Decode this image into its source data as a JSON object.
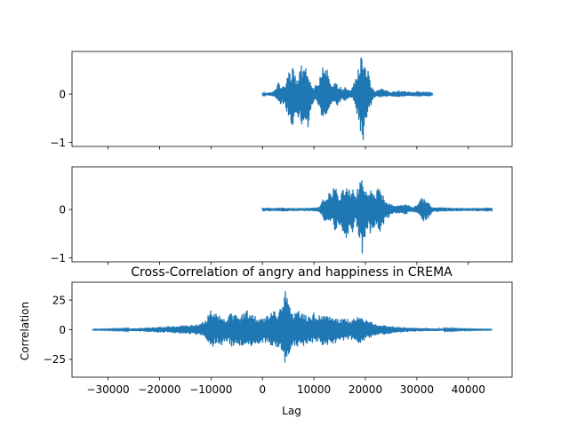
{
  "chart_data": [
    {
      "type": "line",
      "title": "",
      "xlabel": "",
      "ylabel": "",
      "xlim": [
        -37000,
        48500
      ],
      "ylim": [
        -1.08,
        0.88
      ],
      "xticks": [
        -30000,
        -20000,
        -10000,
        0,
        10000,
        20000,
        30000,
        40000
      ],
      "xtick_labels_shown": false,
      "yticks": [
        -1,
        0
      ],
      "ytick_labels": [
        "−1",
        "0"
      ],
      "color": "#1f77b4",
      "grid": false,
      "series": [
        {
          "x_start": 0,
          "x_end": 33000,
          "envelope": [
            [
              0,
              0.02,
              -0.02
            ],
            [
              1000,
              0.03,
              -0.03
            ],
            [
              2000,
              0.05,
              -0.05
            ],
            [
              2500,
              0.1,
              -0.08
            ],
            [
              3000,
              0.3,
              -0.18
            ],
            [
              3500,
              0.2,
              -0.22
            ],
            [
              4000,
              0.15,
              -0.2
            ],
            [
              4500,
              0.22,
              -0.3
            ],
            [
              5000,
              0.6,
              -0.55
            ],
            [
              5500,
              0.45,
              -0.75
            ],
            [
              6000,
              0.7,
              -0.6
            ],
            [
              6500,
              0.35,
              -0.45
            ],
            [
              7000,
              0.3,
              -0.5
            ],
            [
              7500,
              0.65,
              -0.7
            ],
            [
              8000,
              0.55,
              -0.85
            ],
            [
              8500,
              0.6,
              -0.95
            ],
            [
              9000,
              0.4,
              -0.5
            ],
            [
              9500,
              0.2,
              -0.3
            ],
            [
              10000,
              0.1,
              -0.15
            ],
            [
              10500,
              0.25,
              -0.15
            ],
            [
              11000,
              0.3,
              -0.3
            ],
            [
              11500,
              0.62,
              -0.5
            ],
            [
              12000,
              0.45,
              -0.55
            ],
            [
              12500,
              0.58,
              -0.6
            ],
            [
              13000,
              0.3,
              -0.3
            ],
            [
              13500,
              0.15,
              -0.2
            ],
            [
              14000,
              0.25,
              -0.15
            ],
            [
              14500,
              0.2,
              -0.25
            ],
            [
              15000,
              0.18,
              -0.2
            ],
            [
              15500,
              0.1,
              -0.12
            ],
            [
              16000,
              0.15,
              -0.15
            ],
            [
              16500,
              0.1,
              -0.1
            ],
            [
              17000,
              0.08,
              -0.08
            ],
            [
              17500,
              0.15,
              -0.1
            ],
            [
              18000,
              0.35,
              -0.3
            ],
            [
              18500,
              0.45,
              -0.55
            ],
            [
              19000,
              0.75,
              -0.85
            ],
            [
              19500,
              0.82,
              -1.0
            ],
            [
              20000,
              0.7,
              -0.75
            ],
            [
              20500,
              0.5,
              -0.45
            ],
            [
              21000,
              0.22,
              -0.25
            ],
            [
              21500,
              0.1,
              -0.08
            ],
            [
              22000,
              0.06,
              -0.06
            ],
            [
              23000,
              0.12,
              -0.08
            ],
            [
              24000,
              0.08,
              -0.06
            ],
            [
              25000,
              0.05,
              -0.05
            ],
            [
              26000,
              0.07,
              -0.06
            ],
            [
              27000,
              0.08,
              -0.06
            ],
            [
              28000,
              0.06,
              -0.05
            ],
            [
              29000,
              0.05,
              -0.05
            ],
            [
              30000,
              0.06,
              -0.05
            ],
            [
              31000,
              0.05,
              -0.05
            ],
            [
              32000,
              0.06,
              -0.05
            ],
            [
              33000,
              0.03,
              -0.03
            ]
          ]
        }
      ]
    },
    {
      "type": "line",
      "title": "",
      "xlabel": "",
      "ylabel": "",
      "xlim": [
        -37000,
        48500
      ],
      "ylim": [
        -1.08,
        0.88
      ],
      "xticks": [
        -30000,
        -20000,
        -10000,
        0,
        10000,
        20000,
        30000,
        40000
      ],
      "xtick_labels_shown": false,
      "yticks": [
        -1,
        0
      ],
      "ytick_labels": [
        "−1",
        "0"
      ],
      "color": "#1f77b4",
      "grid": false,
      "series": [
        {
          "x_start": 0,
          "x_end": 44500,
          "envelope": [
            [
              0,
              0.04,
              -0.04
            ],
            [
              2000,
              0.03,
              -0.03
            ],
            [
              4000,
              0.04,
              -0.04
            ],
            [
              6000,
              0.03,
              -0.03
            ],
            [
              8000,
              0.03,
              -0.03
            ],
            [
              10000,
              0.04,
              -0.04
            ],
            [
              11000,
              0.05,
              -0.05
            ],
            [
              11500,
              0.15,
              -0.15
            ],
            [
              12000,
              0.3,
              -0.32
            ],
            [
              12500,
              0.28,
              -0.25
            ],
            [
              13000,
              0.4,
              -0.3
            ],
            [
              13500,
              0.3,
              -0.25
            ],
            [
              14000,
              0.55,
              -0.45
            ],
            [
              14500,
              0.38,
              -0.35
            ],
            [
              15000,
              0.3,
              -0.4
            ],
            [
              15500,
              0.45,
              -0.5
            ],
            [
              16000,
              0.35,
              -0.55
            ],
            [
              16500,
              0.62,
              -0.68
            ],
            [
              17000,
              0.35,
              -0.38
            ],
            [
              17500,
              0.5,
              -0.5
            ],
            [
              18000,
              0.3,
              -0.25
            ],
            [
              18500,
              0.45,
              -0.62
            ],
            [
              19000,
              0.72,
              -0.78
            ],
            [
              19500,
              0.65,
              -1.0
            ],
            [
              20000,
              0.4,
              -0.45
            ],
            [
              20500,
              0.3,
              -0.38
            ],
            [
              21000,
              0.42,
              -0.55
            ],
            [
              21500,
              0.35,
              -0.42
            ],
            [
              22000,
              0.3,
              -0.35
            ],
            [
              22500,
              0.5,
              -0.55
            ],
            [
              23000,
              0.38,
              -0.42
            ],
            [
              23500,
              0.28,
              -0.3
            ],
            [
              24000,
              0.15,
              -0.2
            ],
            [
              25000,
              0.12,
              -0.12
            ],
            [
              26000,
              0.08,
              -0.08
            ],
            [
              27000,
              0.1,
              -0.1
            ],
            [
              28000,
              0.12,
              -0.1
            ],
            [
              29000,
              0.05,
              -0.05
            ],
            [
              30000,
              0.1,
              -0.08
            ],
            [
              31000,
              0.25,
              -0.3
            ],
            [
              32000,
              0.18,
              -0.2
            ],
            [
              32500,
              0.12,
              -0.12
            ],
            [
              33000,
              0.05,
              -0.05
            ],
            [
              36000,
              0.04,
              -0.04
            ],
            [
              40000,
              0.03,
              -0.03
            ],
            [
              44500,
              0.04,
              -0.04
            ]
          ]
        }
      ]
    },
    {
      "type": "line",
      "title": "Cross-Correlation of angry and happiness in CREMA",
      "xlabel": "Lag",
      "ylabel": "Correlation",
      "xlim": [
        -37000,
        48500
      ],
      "ylim": [
        -40,
        40
      ],
      "xticks": [
        -30000,
        -20000,
        -10000,
        0,
        10000,
        20000,
        30000,
        40000
      ],
      "xtick_labels": [
        "−30000",
        "−20000",
        "−10000",
        "0",
        "10000",
        "20000",
        "30000",
        "40000"
      ],
      "xtick_labels_shown": true,
      "yticks": [
        -25,
        0,
        25
      ],
      "ytick_labels": [
        "−25",
        "0",
        "25"
      ],
      "color": "#1f77b4",
      "grid": false,
      "series": [
        {
          "x_start": -33000,
          "x_end": 44500,
          "envelope": [
            [
              -33000,
              0.3,
              -0.3
            ],
            [
              -30000,
              0.4,
              -0.4
            ],
            [
              -28000,
              0.6,
              -0.6
            ],
            [
              -26000,
              1.0,
              -1.0
            ],
            [
              -24000,
              1.5,
              -1.5
            ],
            [
              -22000,
              2.0,
              -2.0
            ],
            [
              -20000,
              2.5,
              -2.5
            ],
            [
              -18000,
              3.0,
              -2.8
            ],
            [
              -16000,
              3.5,
              -3.5
            ],
            [
              -14000,
              4.0,
              -4.0
            ],
            [
              -12000,
              5.0,
              -5.0
            ],
            [
              -11000,
              10.0,
              -8.0
            ],
            [
              -10000,
              19.0,
              -16.0
            ],
            [
              -9000,
              15.0,
              -12.0
            ],
            [
              -8000,
              12.0,
              -13.0
            ],
            [
              -7000,
              10.0,
              -10.0
            ],
            [
              -6000,
              16.0,
              -15.0
            ],
            [
              -5000,
              12.0,
              -13.0
            ],
            [
              -4000,
              14.0,
              -14.0
            ],
            [
              -3000,
              17.0,
              -16.0
            ],
            [
              -2000,
              13.0,
              -14.0
            ],
            [
              -1000,
              11.0,
              -12.0
            ],
            [
              0,
              10.0,
              -11.0
            ],
            [
              1000,
              14.0,
              -12.0
            ],
            [
              2000,
              17.0,
              -18.0
            ],
            [
              3000,
              15.0,
              -16.0
            ],
            [
              4000,
              22.0,
              -20.0
            ],
            [
              4500,
              36.0,
              -34.0
            ],
            [
              5000,
              22.0,
              -22.0
            ],
            [
              6000,
              15.0,
              -16.0
            ],
            [
              7000,
              17.0,
              -15.0
            ],
            [
              8000,
              14.0,
              -14.0
            ],
            [
              9000,
              11.0,
              -10.0
            ],
            [
              10000,
              15.0,
              -12.0
            ],
            [
              11000,
              12.0,
              -11.0
            ],
            [
              12000,
              16.0,
              -15.0
            ],
            [
              13000,
              11.0,
              -12.0
            ],
            [
              14000,
              12.0,
              -13.0
            ],
            [
              15000,
              9.0,
              -10.0
            ],
            [
              16000,
              11.0,
              -9.0
            ],
            [
              17000,
              8.0,
              -9.0
            ],
            [
              18000,
              10.0,
              -10.0
            ],
            [
              19000,
              14.0,
              -12.0
            ],
            [
              20000,
              9.0,
              -8.0
            ],
            [
              22000,
              5.0,
              -5.0
            ],
            [
              24000,
              4.0,
              -4.0
            ],
            [
              26000,
              2.5,
              -2.5
            ],
            [
              28000,
              2.0,
              -2.0
            ],
            [
              30000,
              1.5,
              -1.5
            ],
            [
              32000,
              1.2,
              -1.2
            ],
            [
              34000,
              1.0,
              -1.0
            ],
            [
              36000,
              0.8,
              -0.8
            ],
            [
              38000,
              0.6,
              -0.6
            ],
            [
              40000,
              0.5,
              -0.5
            ],
            [
              42000,
              0.4,
              -0.4
            ],
            [
              44500,
              0.3,
              -0.3
            ]
          ]
        }
      ]
    }
  ]
}
